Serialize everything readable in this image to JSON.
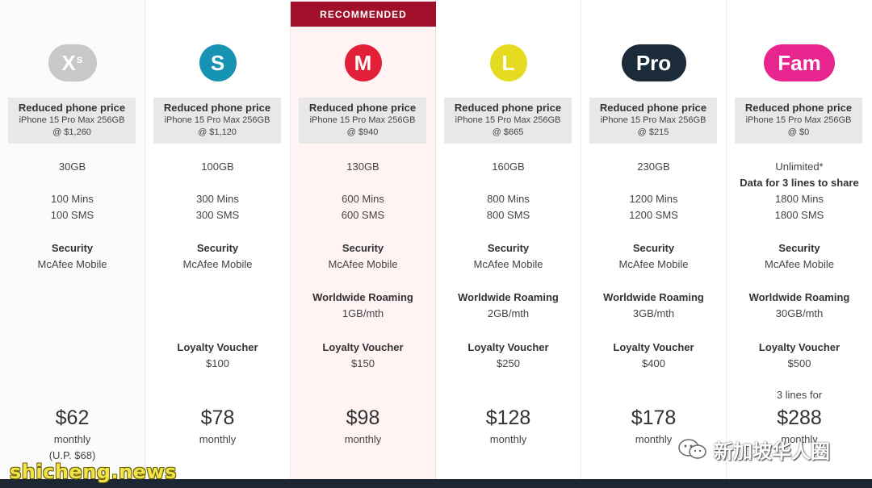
{
  "banner": {
    "recommended": "RECOMMENDED"
  },
  "promo_title": "Reduced phone price",
  "promo_model": "iPhone 15 Pro Max 256GB",
  "plans": [
    {
      "badge": "X",
      "badge_sup": "s",
      "color": "#c8c8c8",
      "promo_price": "@ $1,260",
      "data": "30GB",
      "mins": "100 Mins",
      "sms": "100 SMS",
      "security_title": "Security",
      "security_value": "McAfee Mobile",
      "price": "$62",
      "period": "monthly",
      "note": "(U.P. $68)"
    },
    {
      "badge": "S",
      "color": "#1693b3",
      "promo_price": "@ $1,120",
      "data": "100GB",
      "mins": "300 Mins",
      "sms": "300 SMS",
      "security_title": "Security",
      "security_value": "McAfee Mobile",
      "loyalty_title": "Loyalty Voucher",
      "loyalty_value": "$100",
      "price": "$78",
      "period": "monthly"
    },
    {
      "badge": "M",
      "color": "#e3203a",
      "promo_price": "@ $940",
      "data": "130GB",
      "mins": "600 Mins",
      "sms": "600 SMS",
      "security_title": "Security",
      "security_value": "McAfee Mobile",
      "roaming_title": "Worldwide Roaming",
      "roaming_value": "1GB/mth",
      "loyalty_title": "Loyalty Voucher",
      "loyalty_value": "$150",
      "price": "$98",
      "period": "monthly"
    },
    {
      "badge": "L",
      "color": "#e5dc22",
      "promo_price": "@ $665",
      "data": "160GB",
      "mins": "800 Mins",
      "sms": "800 SMS",
      "security_title": "Security",
      "security_value": "McAfee Mobile",
      "roaming_title": "Worldwide Roaming",
      "roaming_value": "2GB/mth",
      "loyalty_title": "Loyalty Voucher",
      "loyalty_value": "$250",
      "price": "$128",
      "period": "monthly"
    },
    {
      "badge": "Pro",
      "color": "#1c2b3a",
      "promo_price": "@ $215",
      "data": "230GB",
      "mins": "1200 Mins",
      "sms": "1200 SMS",
      "security_title": "Security",
      "security_value": "McAfee Mobile",
      "roaming_title": "Worldwide Roaming",
      "roaming_value": "3GB/mth",
      "loyalty_title": "Loyalty Voucher",
      "loyalty_value": "$400",
      "price": "$178",
      "period": "monthly"
    },
    {
      "badge": "Fam",
      "color": "#e8258f",
      "promo_price": "@ $0",
      "data": "Unlimited*",
      "data_sub": "Data for 3 lines to share",
      "mins": "1800 Mins",
      "sms": "1800 SMS",
      "security_title": "Security",
      "security_value": "McAfee Mobile",
      "roaming_title": "Worldwide Roaming",
      "roaming_value": "30GB/mth",
      "loyalty_title": "Loyalty Voucher",
      "loyalty_value": "$500",
      "pre_price": "3 lines for",
      "price": "$288",
      "period": "monthly"
    }
  ],
  "watermarks": {
    "left": "shicheng.news",
    "right": "新加坡华人圈",
    "right_icon": "wechat-icon"
  }
}
